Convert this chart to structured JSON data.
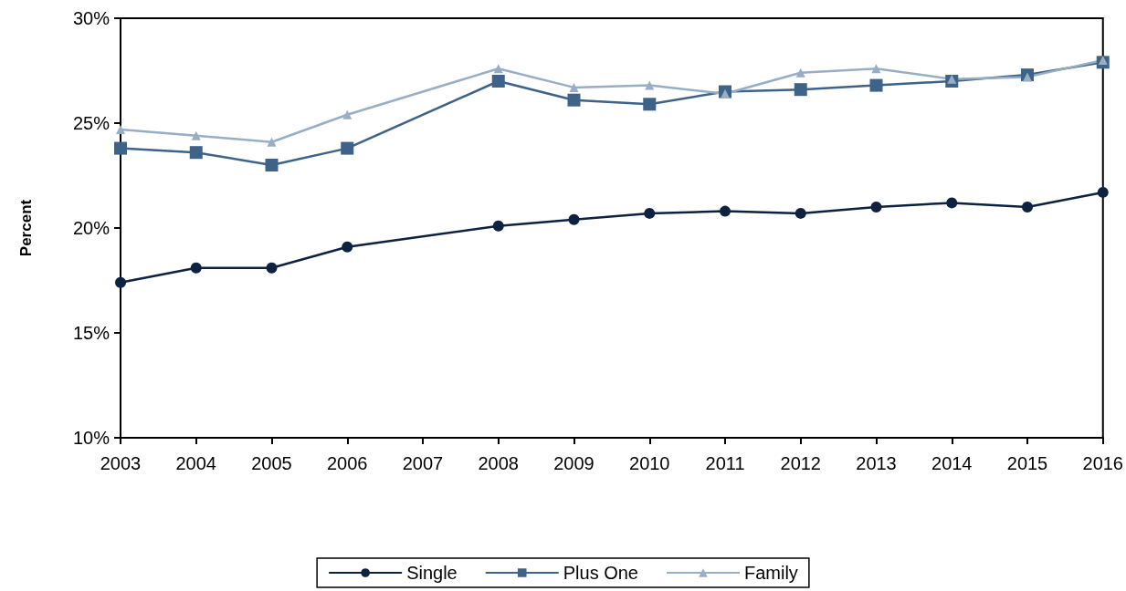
{
  "chart_data": {
    "type": "line",
    "ylabel": "Percent",
    "xlim": [
      2003,
      2016
    ],
    "xticks": [
      2003,
      2004,
      2005,
      2006,
      2007,
      2008,
      2009,
      2010,
      2011,
      2012,
      2013,
      2014,
      2015,
      2016
    ],
    "ylim": [
      10,
      30
    ],
    "yticks": [
      {
        "value": 10,
        "label": "10%"
      },
      {
        "value": 15,
        "label": "15%"
      },
      {
        "value": 20,
        "label": "20%"
      },
      {
        "value": 25,
        "label": "25%"
      },
      {
        "value": 30,
        "label": "30%"
      }
    ],
    "grid": false,
    "legend": "bottom",
    "line_style": "solid",
    "series": [
      {
        "name": "Single",
        "color": "#0d2240",
        "marker": "circle",
        "x": [
          2003,
          2004,
          2005,
          2006,
          2008,
          2009,
          2010,
          2011,
          2012,
          2013,
          2014,
          2015,
          2016
        ],
        "values": [
          17.4,
          18.1,
          18.1,
          19.1,
          20.1,
          20.4,
          20.7,
          20.8,
          20.7,
          21.0,
          21.2,
          21.0,
          21.7
        ]
      },
      {
        "name": "Plus One",
        "color": "#3d6388",
        "marker": "square",
        "x": [
          2003,
          2004,
          2005,
          2006,
          2008,
          2009,
          2010,
          2011,
          2012,
          2013,
          2014,
          2015,
          2016
        ],
        "values": [
          23.8,
          23.6,
          23.0,
          23.8,
          27.0,
          26.1,
          25.9,
          26.5,
          26.6,
          26.8,
          27.0,
          27.3,
          27.9
        ]
      },
      {
        "name": "Family",
        "color": "#98aec4",
        "marker": "triangle",
        "x": [
          2003,
          2004,
          2005,
          2006,
          2008,
          2009,
          2010,
          2011,
          2012,
          2013,
          2014,
          2015,
          2016
        ],
        "values": [
          24.7,
          24.4,
          24.1,
          25.4,
          27.6,
          26.7,
          26.8,
          26.4,
          27.4,
          27.6,
          27.1,
          27.2,
          28.0
        ]
      }
    ]
  }
}
